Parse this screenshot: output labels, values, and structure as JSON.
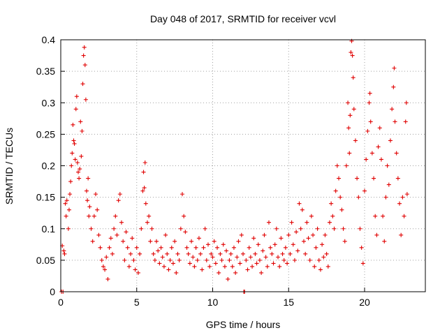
{
  "chart_data": {
    "type": "scatter",
    "title": "Day 048 of 2017, SRMTID for receiver vcvl",
    "xlabel": "GPS time / hours",
    "ylabel": "SRMTID / TECUs",
    "xlim": [
      0,
      24
    ],
    "ylim": [
      0,
      0.4
    ],
    "x_ticks": [
      0,
      5,
      10,
      15,
      20
    ],
    "x_tick_labels": [
      "0",
      "5",
      "10",
      "15",
      "20"
    ],
    "y_ticks": [
      0,
      0.05,
      0.1,
      0.15,
      0.2,
      0.25,
      0.3,
      0.35,
      0.4
    ],
    "y_tick_labels": [
      "0",
      "0.05",
      "0.1",
      "0.15",
      "0.2",
      "0.25",
      "0.3",
      "0.35",
      "0.4"
    ],
    "grid": true,
    "marker": "+",
    "color": "#e00000",
    "series": [
      {
        "name": "SRMTID",
        "points": [
          [
            0.05,
            0.0
          ],
          [
            0.1,
            0.073
          ],
          [
            0.15,
            0.0
          ],
          [
            0.2,
            0.065
          ],
          [
            0.25,
            0.06
          ],
          [
            0.3,
            0.14
          ],
          [
            0.35,
            0.12
          ],
          [
            0.4,
            0.145
          ],
          [
            0.5,
            0.1
          ],
          [
            0.55,
            0.13
          ],
          [
            0.6,
            0.155
          ],
          [
            0.65,
            0.175
          ],
          [
            0.7,
            0.2
          ],
          [
            0.75,
            0.22
          ],
          [
            0.8,
            0.265
          ],
          [
            0.85,
            0.24
          ],
          [
            0.9,
            0.235
          ],
          [
            0.95,
            0.21
          ],
          [
            1.0,
            0.29
          ],
          [
            1.05,
            0.31
          ],
          [
            1.1,
            0.205
          ],
          [
            1.15,
            0.19
          ],
          [
            1.2,
            0.18
          ],
          [
            1.25,
            0.195
          ],
          [
            1.3,
            0.27
          ],
          [
            1.35,
            0.215
          ],
          [
            1.4,
            0.255
          ],
          [
            1.45,
            0.33
          ],
          [
            1.5,
            0.375
          ],
          [
            1.55,
            0.388
          ],
          [
            1.6,
            0.36
          ],
          [
            1.65,
            0.305
          ],
          [
            1.7,
            0.16
          ],
          [
            1.75,
            0.145
          ],
          [
            1.8,
            0.18
          ],
          [
            1.85,
            0.12
          ],
          [
            1.9,
            0.135
          ],
          [
            2.0,
            0.1
          ],
          [
            2.1,
            0.08
          ],
          [
            2.2,
            0.12
          ],
          [
            2.3,
            0.155
          ],
          [
            2.4,
            0.13
          ],
          [
            2.5,
            0.09
          ],
          [
            2.6,
            0.07
          ],
          [
            2.7,
            0.05
          ],
          [
            2.8,
            0.04
          ],
          [
            2.9,
            0.035
          ],
          [
            3.0,
            0.055
          ],
          [
            3.1,
            0.02
          ],
          [
            3.2,
            0.07
          ],
          [
            3.3,
            0.085
          ],
          [
            3.4,
            0.06
          ],
          [
            3.5,
            0.1
          ],
          [
            3.6,
            0.12
          ],
          [
            3.7,
            0.09
          ],
          [
            3.8,
            0.145
          ],
          [
            3.9,
            0.155
          ],
          [
            4.0,
            0.11
          ],
          [
            4.1,
            0.08
          ],
          [
            4.2,
            0.05
          ],
          [
            4.3,
            0.095
          ],
          [
            4.4,
            0.07
          ],
          [
            4.5,
            0.04
          ],
          [
            4.6,
            0.06
          ],
          [
            4.7,
            0.085
          ],
          [
            4.8,
            0.05
          ],
          [
            4.9,
            0.035
          ],
          [
            5.0,
            0.07
          ],
          [
            5.1,
            0.03
          ],
          [
            5.2,
            0.06
          ],
          [
            5.3,
            0.1
          ],
          [
            5.4,
            0.16
          ],
          [
            5.45,
            0.19
          ],
          [
            5.5,
            0.165
          ],
          [
            5.55,
            0.205
          ],
          [
            5.6,
            0.14
          ],
          [
            5.7,
            0.11
          ],
          [
            5.8,
            0.12
          ],
          [
            5.9,
            0.08
          ],
          [
            6.0,
            0.1
          ],
          [
            6.1,
            0.06
          ],
          [
            6.2,
            0.05
          ],
          [
            6.3,
            0.08
          ],
          [
            6.4,
            0.065
          ],
          [
            6.5,
            0.045
          ],
          [
            6.6,
            0.07
          ],
          [
            6.7,
            0.055
          ],
          [
            6.8,
            0.04
          ],
          [
            6.9,
            0.09
          ],
          [
            7.0,
            0.06
          ],
          [
            7.1,
            0.035
          ],
          [
            7.2,
            0.05
          ],
          [
            7.3,
            0.07
          ],
          [
            7.4,
            0.045
          ],
          [
            7.5,
            0.08
          ],
          [
            7.6,
            0.03
          ],
          [
            7.7,
            0.06
          ],
          [
            7.8,
            0.05
          ],
          [
            7.9,
            0.1
          ],
          [
            8.0,
            0.155
          ],
          [
            8.1,
            0.12
          ],
          [
            8.2,
            0.095
          ],
          [
            8.3,
            0.07
          ],
          [
            8.4,
            0.06
          ],
          [
            8.5,
            0.045
          ],
          [
            8.6,
            0.08
          ],
          [
            8.7,
            0.055
          ],
          [
            8.8,
            0.04
          ],
          [
            8.9,
            0.07
          ],
          [
            9.0,
            0.05
          ],
          [
            9.1,
            0.085
          ],
          [
            9.2,
            0.06
          ],
          [
            9.3,
            0.035
          ],
          [
            9.4,
            0.07
          ],
          [
            9.5,
            0.1
          ],
          [
            9.6,
            0.05
          ],
          [
            9.7,
            0.075
          ],
          [
            9.8,
            0.04
          ],
          [
            9.9,
            0.06
          ],
          [
            10.0,
            0.055
          ],
          [
            10.1,
            0.08
          ],
          [
            10.2,
            0.045
          ],
          [
            10.3,
            0.07
          ],
          [
            10.4,
            0.03
          ],
          [
            10.5,
            0.06
          ],
          [
            10.6,
            0.05
          ],
          [
            10.7,
            0.075
          ],
          [
            10.8,
            0.04
          ],
          [
            10.9,
            0.065
          ],
          [
            11.0,
            0.02
          ],
          [
            11.1,
            0.05
          ],
          [
            11.2,
            0.06
          ],
          [
            11.3,
            0.04
          ],
          [
            11.4,
            0.07
          ],
          [
            11.5,
            0.03
          ],
          [
            11.6,
            0.055
          ],
          [
            11.7,
            0.08
          ],
          [
            11.8,
            0.045
          ],
          [
            11.9,
            0.09
          ],
          [
            12.0,
            0.06
          ],
          [
            12.05,
            0.0
          ],
          [
            12.1,
            0.0
          ],
          [
            12.2,
            0.05
          ],
          [
            12.3,
            0.035
          ],
          [
            12.4,
            0.07
          ],
          [
            12.5,
            0.055
          ],
          [
            12.6,
            0.04
          ],
          [
            12.7,
            0.085
          ],
          [
            12.8,
            0.06
          ],
          [
            12.9,
            0.045
          ],
          [
            13.0,
            0.075
          ],
          [
            13.1,
            0.05
          ],
          [
            13.2,
            0.03
          ],
          [
            13.3,
            0.065
          ],
          [
            13.4,
            0.09
          ],
          [
            13.5,
            0.055
          ],
          [
            13.6,
            0.04
          ],
          [
            13.7,
            0.11
          ],
          [
            13.8,
            0.07
          ],
          [
            13.9,
            0.06
          ],
          [
            14.0,
            0.045
          ],
          [
            14.1,
            0.075
          ],
          [
            14.2,
            0.1
          ],
          [
            14.3,
            0.055
          ],
          [
            14.4,
            0.04
          ],
          [
            14.5,
            0.085
          ],
          [
            14.6,
            0.06
          ],
          [
            14.7,
            0.05
          ],
          [
            14.8,
            0.07
          ],
          [
            14.9,
            0.045
          ],
          [
            15.0,
            0.09
          ],
          [
            15.1,
            0.06
          ],
          [
            15.2,
            0.11
          ],
          [
            15.3,
            0.075
          ],
          [
            15.4,
            0.05
          ],
          [
            15.5,
            0.095
          ],
          [
            15.6,
            0.065
          ],
          [
            15.7,
            0.14
          ],
          [
            15.8,
            0.1
          ],
          [
            15.9,
            0.13
          ],
          [
            16.0,
            0.08
          ],
          [
            16.1,
            0.06
          ],
          [
            16.2,
            0.11
          ],
          [
            16.3,
            0.085
          ],
          [
            16.4,
            0.05
          ],
          [
            16.5,
            0.12
          ],
          [
            16.6,
            0.09
          ],
          [
            16.7,
            0.04
          ],
          [
            16.8,
            0.07
          ],
          [
            16.9,
            0.1
          ],
          [
            17.0,
            0.05
          ],
          [
            17.1,
            0.035
          ],
          [
            17.2,
            0.075
          ],
          [
            17.3,
            0.055
          ],
          [
            17.4,
            0.09
          ],
          [
            17.5,
            0.06
          ],
          [
            17.6,
            0.04
          ],
          [
            17.7,
            0.11
          ],
          [
            17.8,
            0.14
          ],
          [
            17.9,
            0.12
          ],
          [
            18.0,
            0.1
          ],
          [
            18.1,
            0.16
          ],
          [
            18.2,
            0.2
          ],
          [
            18.3,
            0.18
          ],
          [
            18.4,
            0.15
          ],
          [
            18.5,
            0.13
          ],
          [
            18.6,
            0.1
          ],
          [
            18.7,
            0.08
          ],
          [
            18.8,
            0.2
          ],
          [
            18.9,
            0.3
          ],
          [
            18.95,
            0.26
          ],
          [
            19.0,
            0.22
          ],
          [
            19.05,
            0.28
          ],
          [
            19.1,
            0.38
          ],
          [
            19.15,
            0.398
          ],
          [
            19.2,
            0.375
          ],
          [
            19.25,
            0.34
          ],
          [
            19.3,
            0.29
          ],
          [
            19.4,
            0.24
          ],
          [
            19.5,
            0.18
          ],
          [
            19.6,
            0.15
          ],
          [
            19.7,
            0.1
          ],
          [
            19.8,
            0.07
          ],
          [
            19.9,
            0.045
          ],
          [
            20.0,
            0.16
          ],
          [
            20.1,
            0.21
          ],
          [
            20.2,
            0.255
          ],
          [
            20.3,
            0.3
          ],
          [
            20.35,
            0.315
          ],
          [
            20.4,
            0.27
          ],
          [
            20.5,
            0.22
          ],
          [
            20.6,
            0.18
          ],
          [
            20.7,
            0.12
          ],
          [
            20.8,
            0.09
          ],
          [
            20.9,
            0.23
          ],
          [
            21.0,
            0.26
          ],
          [
            21.1,
            0.21
          ],
          [
            21.2,
            0.12
          ],
          [
            21.3,
            0.08
          ],
          [
            21.4,
            0.15
          ],
          [
            21.5,
            0.2
          ],
          [
            21.6,
            0.17
          ],
          [
            21.7,
            0.24
          ],
          [
            21.8,
            0.29
          ],
          [
            21.9,
            0.325
          ],
          [
            21.95,
            0.355
          ],
          [
            22.0,
            0.27
          ],
          [
            22.1,
            0.22
          ],
          [
            22.2,
            0.18
          ],
          [
            22.3,
            0.14
          ],
          [
            22.4,
            0.09
          ],
          [
            22.5,
            0.15
          ],
          [
            22.6,
            0.12
          ],
          [
            22.7,
            0.27
          ],
          [
            22.75,
            0.3
          ],
          [
            22.8,
            0.155
          ]
        ]
      }
    ]
  }
}
